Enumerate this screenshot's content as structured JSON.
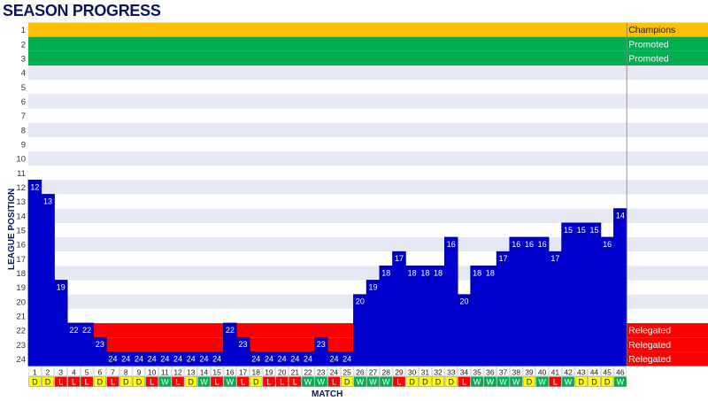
{
  "chart_data": {
    "type": "bar",
    "title": "SEASON PROGRESS",
    "xlabel": "MATCH",
    "ylabel": "LEAGUE POSITION",
    "positions_count": 24,
    "categories": [
      "1",
      "2",
      "3",
      "4",
      "5",
      "6",
      "7",
      "8",
      "9",
      "10",
      "11",
      "12",
      "13",
      "14",
      "15",
      "16",
      "17",
      "18",
      "19",
      "20",
      "21",
      "22",
      "23",
      "24",
      "25",
      "26",
      "27",
      "28",
      "29",
      "30",
      "31",
      "32",
      "33",
      "34",
      "35",
      "36",
      "37",
      "38",
      "39",
      "40",
      "41",
      "42",
      "43",
      "44",
      "45",
      "46"
    ],
    "values": [
      12,
      13,
      19,
      22,
      22,
      23,
      24,
      24,
      24,
      24,
      24,
      24,
      24,
      24,
      24,
      22,
      23,
      24,
      24,
      24,
      24,
      24,
      23,
      24,
      24,
      20,
      19,
      18,
      17,
      18,
      18,
      18,
      16,
      20,
      18,
      18,
      17,
      16,
      16,
      16,
      17,
      15,
      15,
      15,
      16,
      14
    ],
    "results": [
      "D",
      "D",
      "L",
      "L",
      "L",
      "D",
      "L",
      "D",
      "D",
      "L",
      "W",
      "L",
      "D",
      "W",
      "L",
      "W",
      "L",
      "D",
      "L",
      "L",
      "L",
      "W",
      "W",
      "L",
      "D",
      "W",
      "W",
      "W",
      "L",
      "D",
      "D",
      "D",
      "D",
      "L",
      "W",
      "W",
      "W",
      "W",
      "D",
      "W",
      "L",
      "W",
      "D",
      "D",
      "D",
      "W"
    ],
    "zones": [
      {
        "label": "Champions",
        "from": 1,
        "to": 1,
        "color": "#ffc000"
      },
      {
        "label": "Promoted",
        "from": 2,
        "to": 2,
        "color": "#00b050"
      },
      {
        "label": "Promoted",
        "from": 3,
        "to": 3,
        "color": "#00b050"
      },
      {
        "label": "Relegated",
        "from": 22,
        "to": 22,
        "color": "#ff0000"
      },
      {
        "label": "Relegated",
        "from": 23,
        "to": 23,
        "color": "#ff0000"
      },
      {
        "label": "Relegated",
        "from": 24,
        "to": 24,
        "color": "#ff0000"
      }
    ],
    "colors": {
      "bar": "#0000cc",
      "win": "#00b050",
      "draw": "#ffff00",
      "loss": "#ff0000",
      "band_light": "#e6e8f4",
      "band_white": "#ffffff",
      "axis_text": "#0a1560"
    },
    "grid": true
  }
}
